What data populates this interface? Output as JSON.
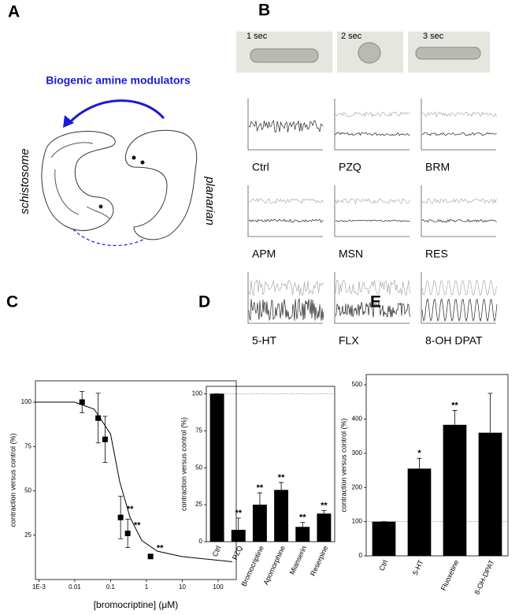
{
  "panel_labels": [
    "A",
    "B",
    "C",
    "D",
    "E"
  ],
  "panel_a": {
    "title": "Biogenic amine modulators",
    "left_label": "schistosome",
    "right_label": "planarian"
  },
  "panel_b": {
    "frame_times": [
      "1 sec",
      "2 sec",
      "3 sec"
    ],
    "traces": [
      "Ctrl",
      "PZQ",
      "BRM",
      "APM",
      "MSN",
      "RES",
      "5-HT",
      "FLX",
      "8-OH DPAT"
    ]
  },
  "chart_data": [
    {
      "type": "scatter",
      "xscale": "log",
      "x": [
        0.016,
        0.045,
        0.07,
        0.19,
        0.3,
        1.3
      ],
      "values": [
        100,
        91,
        79,
        35,
        26,
        13
      ],
      "errors": [
        6,
        14,
        13,
        12,
        8,
        1
      ],
      "annotations": [
        null,
        null,
        null,
        "**",
        "**",
        "**"
      ],
      "fit": {
        "x": [
          0.0008,
          0.01,
          0.035,
          0.1,
          0.18,
          0.35,
          0.74,
          2,
          9.3,
          250
        ],
        "values": [
          100,
          100,
          96,
          82,
          55,
          35,
          22,
          16,
          13,
          10
        ]
      },
      "xlabel": "[bromocriptine] (μM)",
      "ylabel": "contraction versus control (%)",
      "xlim": [
        0.0008,
        320
      ],
      "ylim": [
        0,
        112
      ],
      "xticks": [
        {
          "value": 0.001,
          "label": "1E-3"
        },
        0.01,
        0.1,
        1,
        10,
        100
      ],
      "yticks": [
        25,
        50,
        75,
        100
      ],
      "color": "#000000"
    },
    {
      "type": "bar",
      "categories": [
        "Ctrl",
        "PZQ",
        "Bromocriptine",
        "Apomorphine",
        "Mianserin",
        "Reserpine"
      ],
      "values": [
        100,
        8,
        25,
        35,
        10,
        19
      ],
      "errors": [
        0,
        8,
        8,
        5,
        3,
        2
      ],
      "annotations": [
        null,
        "**",
        "**",
        "**",
        "**",
        "**"
      ],
      "ylabel": "contraction versus control (%)",
      "ylim": [
        0,
        105
      ],
      "yticks": [
        0,
        25,
        50,
        75,
        100
      ],
      "refline": 100,
      "color": "#000000"
    },
    {
      "type": "bar",
      "categories": [
        "Ctrl",
        "5-HT",
        "Fluoxetine",
        "8-OH-DPAT"
      ],
      "values": [
        100,
        255,
        383,
        360
      ],
      "errors": [
        0,
        30,
        42,
        115
      ],
      "annotations": [
        null,
        "*",
        "**",
        null
      ],
      "ylabel": "contraction versus control (%)",
      "ylim": [
        0,
        530
      ],
      "yticks": [
        0,
        100,
        200,
        300,
        400,
        500
      ],
      "refline": 100,
      "color": "#000000"
    }
  ]
}
